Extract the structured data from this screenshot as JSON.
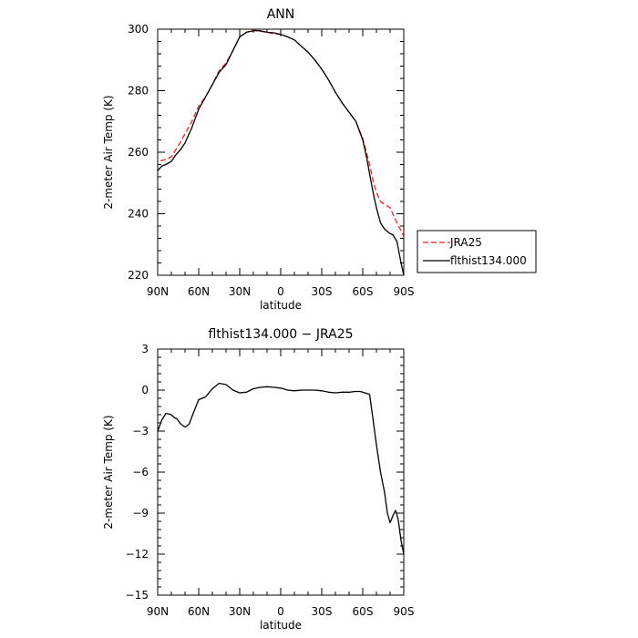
{
  "chart_data": [
    {
      "type": "line",
      "title": "ANN",
      "xlabel": "latitude",
      "ylabel": "2-meter Air Temp (K)",
      "xlim": [
        90,
        -90
      ],
      "ylim": [
        220,
        300
      ],
      "x_ticks": [
        90,
        60,
        30,
        0,
        -30,
        -60,
        -90
      ],
      "x_tick_labels": [
        "90N",
        "60N",
        "30N",
        "0",
        "30S",
        "60S",
        "90S"
      ],
      "y_ticks": [
        220,
        240,
        260,
        280,
        300
      ],
      "y_tick_labels": [
        "220",
        "240",
        "260",
        "280",
        "300"
      ],
      "legend_position": "right",
      "series": [
        {
          "name": "JRA25",
          "color": "#e8231f",
          "dash": "dashed",
          "x": [
            88,
            85,
            80,
            75,
            70,
            65,
            60,
            55,
            50,
            45,
            40,
            35,
            30,
            25,
            20,
            15,
            10,
            5,
            0,
            -5,
            -10,
            -15,
            -20,
            -25,
            -30,
            -35,
            -40,
            -45,
            -50,
            -55,
            -60,
            -65,
            -68,
            -70,
            -73,
            -76,
            -80,
            -84,
            -88,
            -90
          ],
          "y": [
            257.2,
            257.5,
            258.5,
            262,
            266,
            270,
            275,
            278,
            282,
            286.5,
            289,
            293,
            297.5,
            299,
            299.8,
            299.3,
            299,
            298.5,
            298.3,
            297.5,
            296.5,
            294.5,
            292.5,
            290,
            287,
            283.5,
            279.5,
            276,
            273,
            270,
            264.5,
            256,
            250,
            247,
            244,
            243,
            242,
            238,
            234.5,
            232.5
          ]
        },
        {
          "name": "flthist134.000",
          "color": "#000000",
          "dash": "solid",
          "x": [
            90,
            87,
            84,
            80,
            77,
            73,
            70,
            65,
            60,
            55,
            50,
            45,
            40,
            35,
            30,
            25,
            20,
            15,
            10,
            5,
            0,
            -5,
            -10,
            -15,
            -20,
            -25,
            -30,
            -35,
            -40,
            -45,
            -50,
            -55,
            -60,
            -63,
            -65,
            -68,
            -70,
            -73,
            -76,
            -80,
            -82,
            -85,
            -88,
            -90
          ],
          "y": [
            254,
            255.5,
            256,
            257,
            259,
            261,
            263,
            268,
            274,
            278,
            282,
            286,
            288.5,
            293,
            297.5,
            299,
            299.5,
            299.5,
            299,
            298.8,
            298.3,
            297.5,
            296.5,
            294.5,
            292.5,
            290,
            287,
            283.5,
            279.5,
            276,
            273,
            270,
            264,
            258,
            253,
            246,
            242,
            237,
            235,
            233.5,
            233.2,
            231,
            224,
            220
          ]
        }
      ]
    },
    {
      "type": "line",
      "title": "flthist134.000 − JRA25",
      "xlabel": "latitude",
      "ylabel": "2-meter Air Temp (K)",
      "xlim": [
        90,
        -90
      ],
      "ylim": [
        -15,
        3
      ],
      "x_ticks": [
        90,
        60,
        30,
        0,
        -30,
        -60,
        -90
      ],
      "x_tick_labels": [
        "90N",
        "60N",
        "30N",
        "0",
        "30S",
        "60S",
        "90S"
      ],
      "y_ticks": [
        -15,
        -12,
        -9,
        -6,
        -3,
        0,
        3
      ],
      "y_tick_labels": [
        "−15",
        "−12",
        "−9",
        "−6",
        "−3",
        "0",
        "3"
      ],
      "series": [
        {
          "color": "#000000",
          "dash": "solid",
          "x": [
            90,
            87,
            84,
            80,
            78,
            76,
            73,
            70,
            67,
            64,
            60,
            55,
            50,
            45,
            40,
            35,
            30,
            25,
            20,
            15,
            10,
            5,
            0,
            -5,
            -10,
            -15,
            -20,
            -25,
            -30,
            -35,
            -40,
            -45,
            -50,
            -55,
            -58,
            -60,
            -63,
            -65,
            -68,
            -70,
            -73,
            -76,
            -78,
            -80,
            -82,
            -84,
            -86,
            -88,
            -90
          ],
          "y": [
            -3,
            -2.2,
            -1.7,
            -1.8,
            -2.0,
            -2.1,
            -2.5,
            -2.7,
            -2.5,
            -1.7,
            -0.7,
            -0.5,
            0.1,
            0.5,
            0.4,
            0.0,
            -0.2,
            -0.15,
            0.1,
            0.2,
            0.25,
            0.2,
            0.15,
            0.0,
            -0.05,
            0.0,
            0.0,
            0.0,
            -0.05,
            -0.15,
            -0.2,
            -0.15,
            -0.15,
            -0.1,
            -0.1,
            -0.15,
            -0.25,
            -0.3,
            -2.5,
            -4,
            -6,
            -7.5,
            -9,
            -9.7,
            -9.2,
            -8.8,
            -9.5,
            -11,
            -12
          ]
        }
      ]
    }
  ]
}
